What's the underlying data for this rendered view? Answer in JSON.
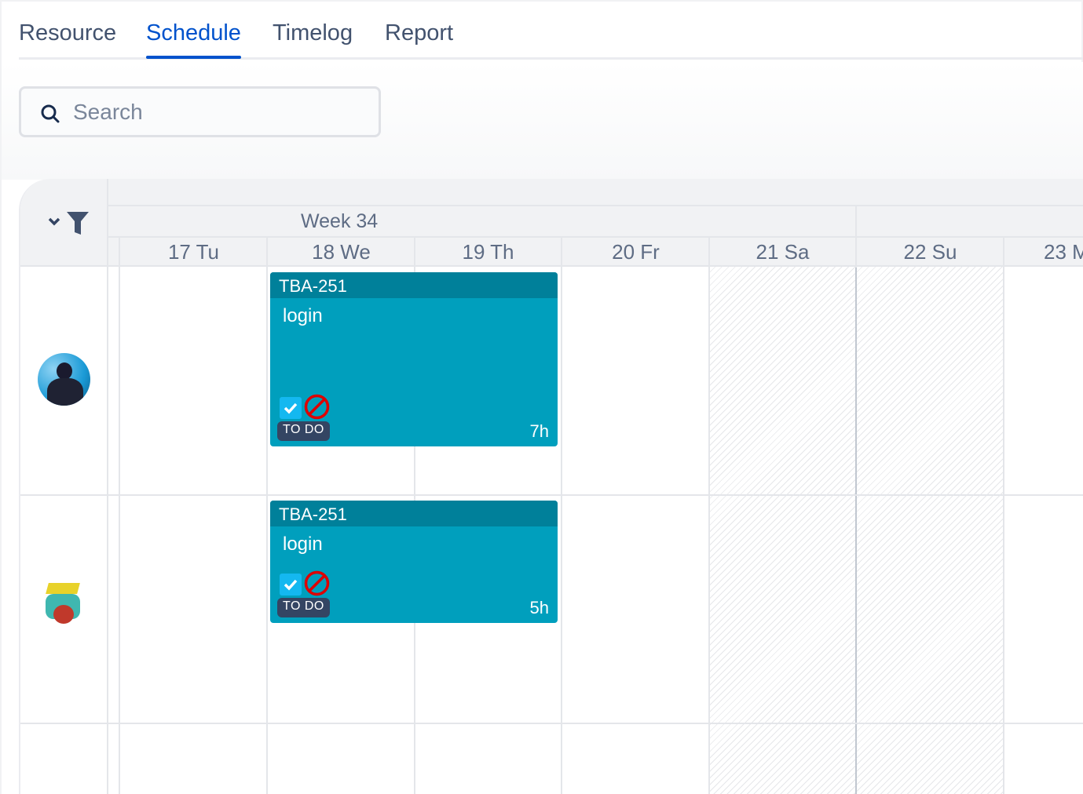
{
  "tabs": [
    {
      "label": "Resource"
    },
    {
      "label": "Schedule",
      "active": true
    },
    {
      "label": "Timelog"
    },
    {
      "label": "Report"
    }
  ],
  "search": {
    "placeholder": "Search",
    "value": ""
  },
  "toolbar": {
    "icons": [
      "chevron-down-icon",
      "filter-icon"
    ]
  },
  "calendar": {
    "week_label": "Week 34",
    "days": [
      {
        "label": "17 Tu"
      },
      {
        "label": "18 We"
      },
      {
        "label": "19 Th"
      },
      {
        "label": "20 Fr"
      },
      {
        "label": "21 Sa",
        "weekend": true
      },
      {
        "label": "22 Su",
        "weekend": true
      },
      {
        "label": "23 M"
      }
    ],
    "rows": [
      {
        "avatar": "user-photo-avatar",
        "events": [
          {
            "key": "TBA-251",
            "title": "login",
            "status": "TO DO",
            "hours": "7h",
            "days": "18 We – 19 Th"
          }
        ]
      },
      {
        "avatar": "robot-bird-avatar",
        "events": [
          {
            "key": "TBA-251",
            "title": "login",
            "status": "TO DO",
            "hours": "5h",
            "days": "18 We – 19 Th"
          }
        ]
      },
      {
        "avatar": "",
        "events": []
      }
    ]
  },
  "colors": {
    "accent": "#0052cc",
    "event": "#009fbd",
    "event_header": "#00809a",
    "status_badge": "#344563",
    "blocked": "#de0000"
  }
}
